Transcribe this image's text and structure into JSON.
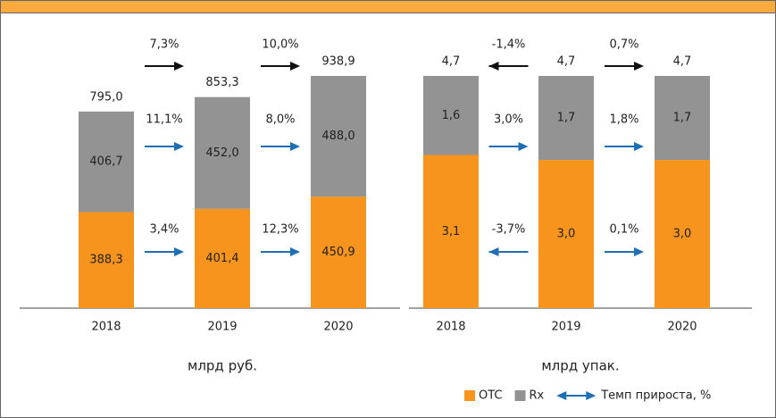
{
  "chart_data": [
    {
      "type": "stacked-bar",
      "unit_label": "млрд руб.",
      "categories": [
        "2018",
        "2019",
        "2020"
      ],
      "series": [
        {
          "name": "OTC",
          "color": "#f7941d",
          "values": [
            388.3,
            401.4,
            450.9
          ],
          "value_labels": [
            "388,3",
            "401,4",
            "450,9"
          ],
          "growth": [
            3.4,
            12.3
          ],
          "growth_labels": [
            "3,4%",
            "12,3%"
          ]
        },
        {
          "name": "Rx",
          "color": "#939393",
          "values": [
            406.7,
            452.0,
            488.0
          ],
          "value_labels": [
            "406,7",
            "452,0",
            "488,0"
          ],
          "growth": [
            11.1,
            8.0
          ],
          "growth_labels": [
            "11,1%",
            "8,0%"
          ]
        }
      ],
      "total": {
        "values": [
          795.0,
          853.3,
          938.9
        ],
        "value_labels": [
          "795,0",
          "853,3",
          "938,9"
        ],
        "growth": [
          7.3,
          10.0
        ],
        "growth_labels": [
          "7,3%",
          "10,0%"
        ]
      },
      "growth_color": "#1f6fb5",
      "total_growth_color": "#111111"
    },
    {
      "type": "stacked-bar",
      "unit_label": "млрд упак.",
      "categories": [
        "2018",
        "2019",
        "2020"
      ],
      "series": [
        {
          "name": "OTC",
          "color": "#f7941d",
          "values": [
            3.1,
            3.0,
            3.0
          ],
          "value_labels": [
            "3,1",
            "3,0",
            "3,0"
          ],
          "growth": [
            -3.7,
            0.1
          ],
          "growth_labels": [
            "-3,7%",
            "0,1%"
          ]
        },
        {
          "name": "Rx",
          "color": "#939393",
          "values": [
            1.6,
            1.7,
            1.7
          ],
          "value_labels": [
            "1,6",
            "1,7",
            "1,7"
          ],
          "growth": [
            3.0,
            1.8
          ],
          "growth_labels": [
            "3,0%",
            "1,8%"
          ]
        }
      ],
      "total": {
        "values": [
          4.7,
          4.7,
          4.7
        ],
        "value_labels": [
          "4,7",
          "4,7",
          "4,7"
        ],
        "growth": [
          -1.4,
          0.7
        ],
        "growth_labels": [
          "-1,4%",
          "0,7%"
        ]
      },
      "growth_color": "#1f6fb5",
      "total_growth_color": "#111111"
    }
  ],
  "legend_growth": "Темп прироста, %"
}
